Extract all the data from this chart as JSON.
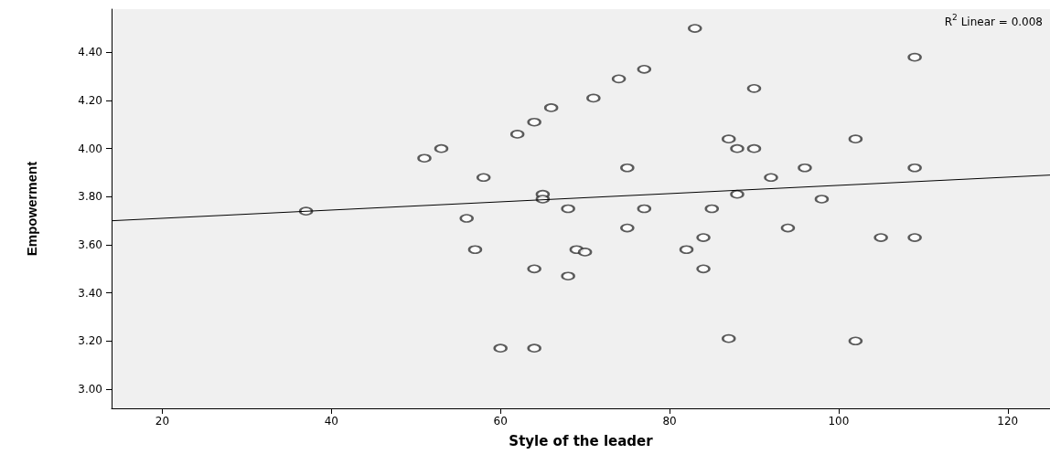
{
  "chart_data": {
    "type": "scatter",
    "xlabel": "Style of the leader",
    "ylabel": "Empowerment",
    "annotations": [
      "R$^{2}$ Linear = 0.008"
    ],
    "xlim": [
      14,
      125
    ],
    "xticks": [
      20,
      40,
      60,
      80,
      100,
      120
    ],
    "ylim": [
      2.92,
      4.58
    ],
    "yticks": [
      {
        "value": 3.0,
        "label": "3.00"
      },
      {
        "value": 3.2,
        "label": "3.20"
      },
      {
        "value": 3.4,
        "label": "3.40"
      },
      {
        "value": 3.6,
        "label": "3.60"
      },
      {
        "value": 3.8,
        "label": "3.80"
      },
      {
        "value": 4.0,
        "label": "4.00"
      },
      {
        "value": 4.2,
        "label": "4.20"
      },
      {
        "value": 4.4,
        "label": "4.40"
      }
    ],
    "grid": false,
    "marker": "circle",
    "series": [
      {
        "color": "#333333",
        "x": [
          37,
          51,
          53,
          56,
          57,
          58,
          60,
          62,
          64,
          64,
          64,
          65,
          65,
          66,
          68,
          68,
          69,
          70,
          71,
          74,
          75,
          75,
          77,
          77,
          82,
          83,
          84,
          84,
          85,
          87,
          87,
          88,
          88,
          90,
          90,
          92,
          94,
          96,
          98,
          102,
          102,
          105,
          109,
          109,
          109
        ],
        "values": [
          3.74,
          3.96,
          4.0,
          3.71,
          3.58,
          3.88,
          3.17,
          4.06,
          4.11,
          3.5,
          3.17,
          3.81,
          3.79,
          4.17,
          3.75,
          3.47,
          3.58,
          3.57,
          4.21,
          4.29,
          3.92,
          3.67,
          4.33,
          3.75,
          3.58,
          4.5,
          3.63,
          3.5,
          3.75,
          4.04,
          3.21,
          4.0,
          3.81,
          4.25,
          4.0,
          3.88,
          3.67,
          3.92,
          3.79,
          4.04,
          3.2,
          3.63,
          4.38,
          3.92,
          3.63
        ]
      },
      {
        "type": "line",
        "color": "#000000",
        "marker": "none",
        "line_style": "solid",
        "x": [
          14,
          125
        ],
        "values": [
          3.7,
          3.89
        ]
      }
    ]
  }
}
